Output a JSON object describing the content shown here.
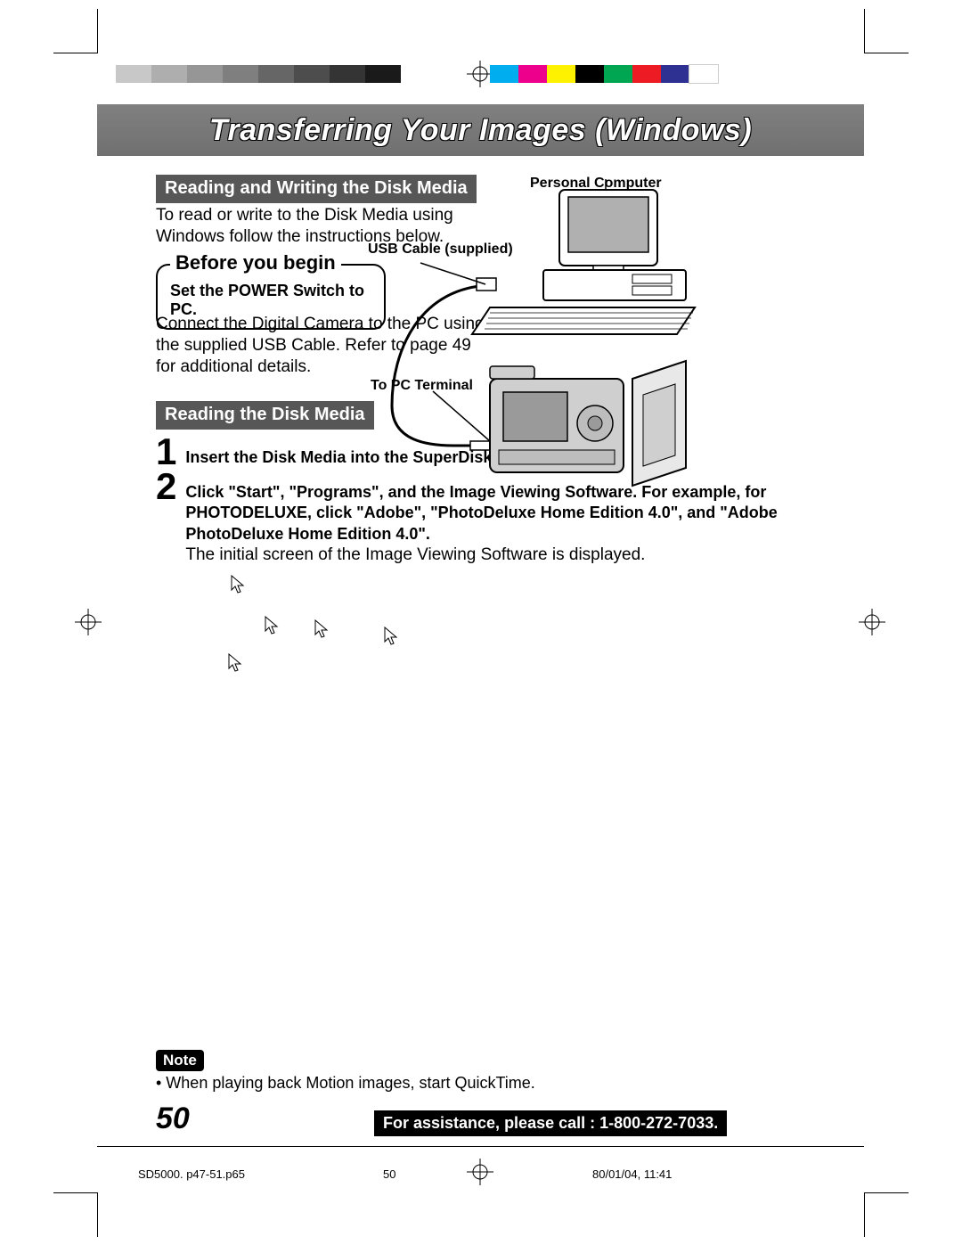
{
  "colorbars_left": [
    "#c8c8c8",
    "#c8c8c8",
    "#aeaeae",
    "#aeaeae",
    "#969696",
    "#969696",
    "#7f7f7f",
    "#7f7f7f",
    "#666666",
    "#666666",
    "#4d4d4d",
    "#4d4d4d",
    "#343434",
    "#343434",
    "#1a1a1a",
    "#1a1a1a"
  ],
  "colorbars_right": [
    "#00aeef",
    "#ec008c",
    "#fff200",
    "#000000",
    "#00a651",
    "#ed1c24",
    "#2e3192",
    "#ffffff"
  ],
  "colorbar_swatch_width": 20,
  "title": "Transferring Your Images (Windows)",
  "section_rw": "Reading and Writing the Disk Media",
  "rw_body": "To read or write to the Disk Media using Windows follow the instructions below.",
  "before_legend": "Before you begin",
  "before_text": "Set the POWER Switch to PC.",
  "connect_text": "Connect the Digital Camera to the PC using the supplied USB Cable. Refer to page 49 for additional details.",
  "section_read": "Reading the Disk Media",
  "step1_num": "1",
  "step1_text": "Insert the Disk Media into the SuperDisk Slot.",
  "step2_num": "2",
  "step2_bold": "Click \"Start\", \"Programs\", and the Image Viewing Software. For example, for PHOTODELUXE, click \"Adobe\", \"PhotoDeluxe Home Edition 4.0\", and \"Adobe PhotoDeluxe Home Edition 4.0\".",
  "step2_normal": "The initial screen of the Image Viewing Software is displayed.",
  "labels": {
    "pc": "Personal Computer",
    "usb": "USB Cable (supplied)",
    "terminal": "To PC Terminal"
  },
  "note_label": "Note",
  "note_text": "• When playing back Motion images, start QuickTime.",
  "page_number": "50",
  "assist_text": "For assistance, please call : 1-800-272-7033.",
  "footer_file": "SD5000. p47-51.p65",
  "footer_page": "50",
  "footer_date": "80/01/04, 11:41",
  "background_color": "#ffffff",
  "title_band_color": "#7a7a7a",
  "section_bar_color": "#575757"
}
